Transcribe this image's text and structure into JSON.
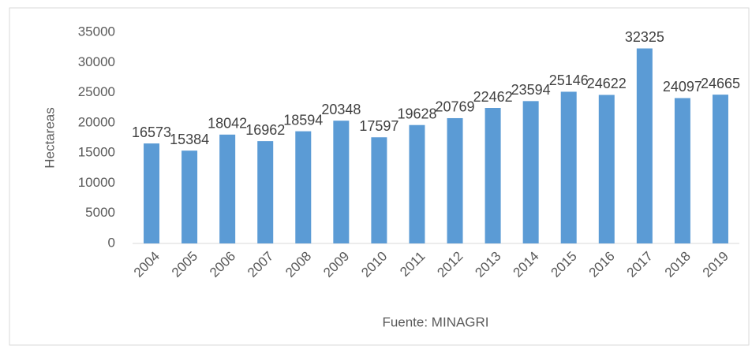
{
  "chart_data": {
    "type": "bar",
    "y_label": "Hectareas",
    "x_label": "Fuente: MINAGRI",
    "categories": [
      "2004",
      "2005",
      "2006",
      "2007",
      "2008",
      "2009",
      "2010",
      "2011",
      "2012",
      "2013",
      "2014",
      "2015",
      "2016",
      "2017",
      "2018",
      "2019"
    ],
    "values": [
      16573,
      15384,
      18042,
      16962,
      18594,
      20348,
      17597,
      19628,
      20769,
      22462,
      23594,
      25146,
      24622,
      32325,
      24097,
      24665
    ],
    "color": "#5b9bd5",
    "ylim": [
      0,
      35000
    ],
    "yticks": [
      0,
      5000,
      10000,
      15000,
      20000,
      25000,
      30000,
      35000
    ],
    "grid": false
  }
}
